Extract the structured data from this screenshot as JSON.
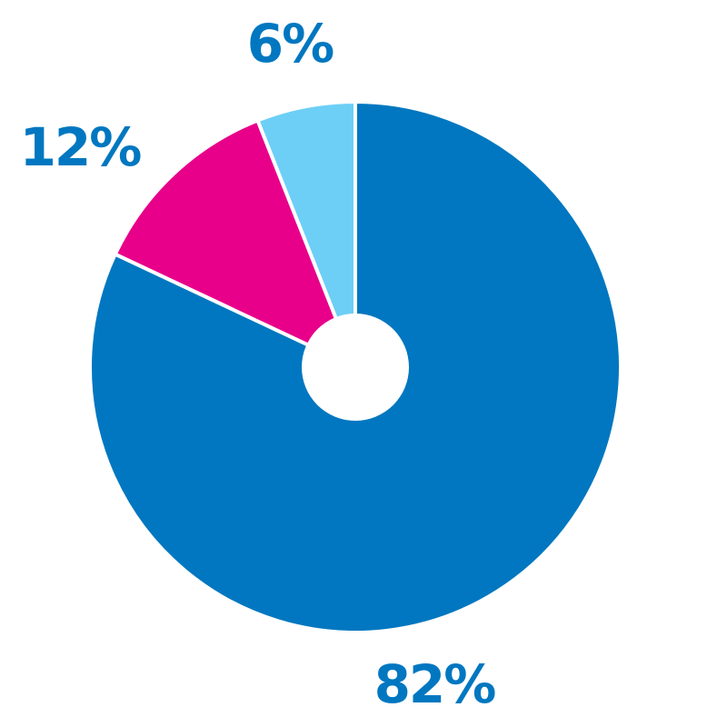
{
  "chart_data": {
    "type": "pie",
    "donut": true,
    "slices": [
      {
        "label": "82%",
        "value": 82,
        "color": "#0077c0"
      },
      {
        "label": "12%",
        "value": 12,
        "color": "#e8008a"
      },
      {
        "label": "6%",
        "value": 6,
        "color": "#6dcff6"
      }
    ],
    "label_color": "#0077c0",
    "background": "#ffffff",
    "start": "top",
    "direction": "clockwise",
    "legend": "none"
  }
}
